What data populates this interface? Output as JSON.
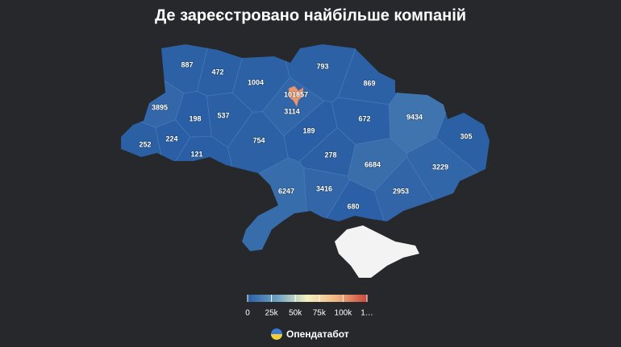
{
  "chart_data": {
    "type": "choropleth",
    "title": "Де зареєстровано найбільше компаній",
    "values": [
      887,
      472,
      1004,
      793,
      869,
      101857,
      3895,
      198,
      537,
      3114,
      189,
      672,
      9434,
      305,
      252,
      224,
      121,
      754,
      278,
      6684,
      3229,
      6247,
      3416,
      2953,
      680
    ],
    "colorscale": [
      "#2a5fa5",
      "#6fa3c2",
      "#f4f1c1",
      "#f0b37e",
      "#c9473b"
    ],
    "clim": [
      0,
      125000
    ],
    "cticks": [
      0,
      {
        "value": 25000,
        "label": "25k"
      },
      {
        "value": 50000,
        "label": "50k"
      },
      {
        "value": 75000,
        "label": "75k"
      },
      {
        "value": 100000,
        "label": "100k"
      },
      {
        "value": 125000,
        "label": "1…"
      }
    ]
  },
  "brand": "Опендатабот"
}
